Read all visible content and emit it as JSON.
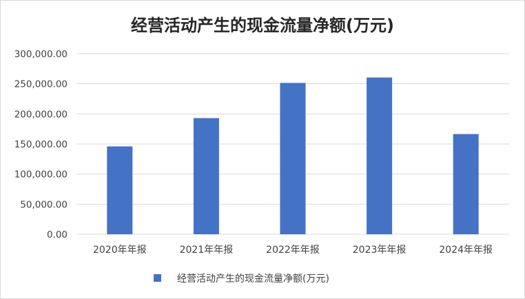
{
  "chart_data": {
    "type": "bar",
    "title": "经营活动产生的现金流量净额(万元)",
    "xlabel": "",
    "ylabel": "",
    "categories": [
      "2020年年报",
      "2021年年报",
      "2022年年报",
      "2023年年报",
      "2024年年报"
    ],
    "series": [
      {
        "name": "经营活动产生的现金流量净额(万元)",
        "values": [
          146000,
          193000,
          251500,
          260500,
          166500
        ],
        "color": "#4472c4"
      }
    ],
    "ylim": [
      0,
      300000
    ],
    "yticks": [
      0,
      50000,
      100000,
      150000,
      200000,
      250000,
      300000
    ],
    "ytick_labels": [
      "0.00",
      "50,000.00",
      "100,000.00",
      "150,000.00",
      "200,000.00",
      "250,000.00",
      "300,000.00"
    ],
    "grid": true,
    "gridline_color": "#d9d9d9",
    "legend_position": "bottom"
  }
}
